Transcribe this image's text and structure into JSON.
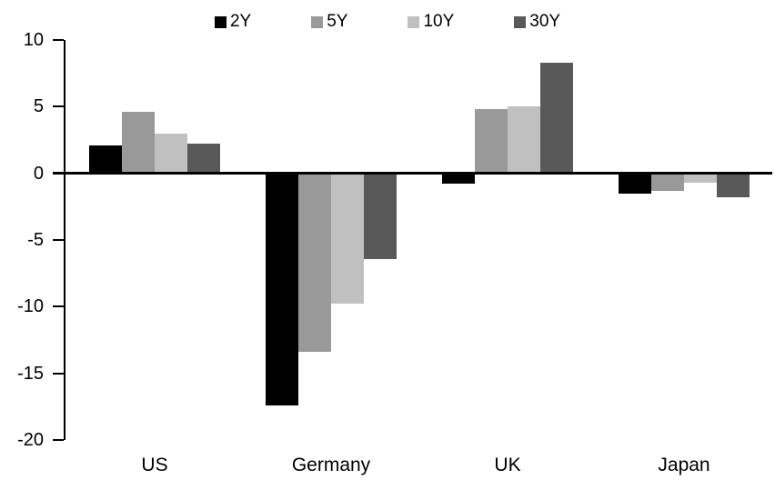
{
  "chart_data": {
    "type": "bar",
    "title": "",
    "xlabel": "",
    "ylabel": "",
    "categories": [
      "US",
      "Germany",
      "UK",
      "Japan"
    ],
    "series": [
      {
        "name": "2Y",
        "color": "#000000",
        "values": [
          2.1,
          -17.4,
          -0.8,
          -1.5
        ]
      },
      {
        "name": "5Y",
        "color": "#999999",
        "values": [
          4.6,
          -13.4,
          4.8,
          -1.3
        ]
      },
      {
        "name": "10Y",
        "color": "#c0c0c0",
        "values": [
          3.0,
          -9.8,
          5.0,
          -0.7
        ]
      },
      {
        "name": "30Y",
        "color": "#595959",
        "values": [
          2.2,
          -6.4,
          8.3,
          -1.8
        ]
      }
    ],
    "ylim": [
      -20,
      10
    ],
    "yticks": [
      10,
      5,
      0,
      -5,
      -10,
      -15,
      -20
    ],
    "grid": false,
    "legend_position": "top",
    "axis_color": "#000000",
    "background_color": "#ffffff"
  }
}
